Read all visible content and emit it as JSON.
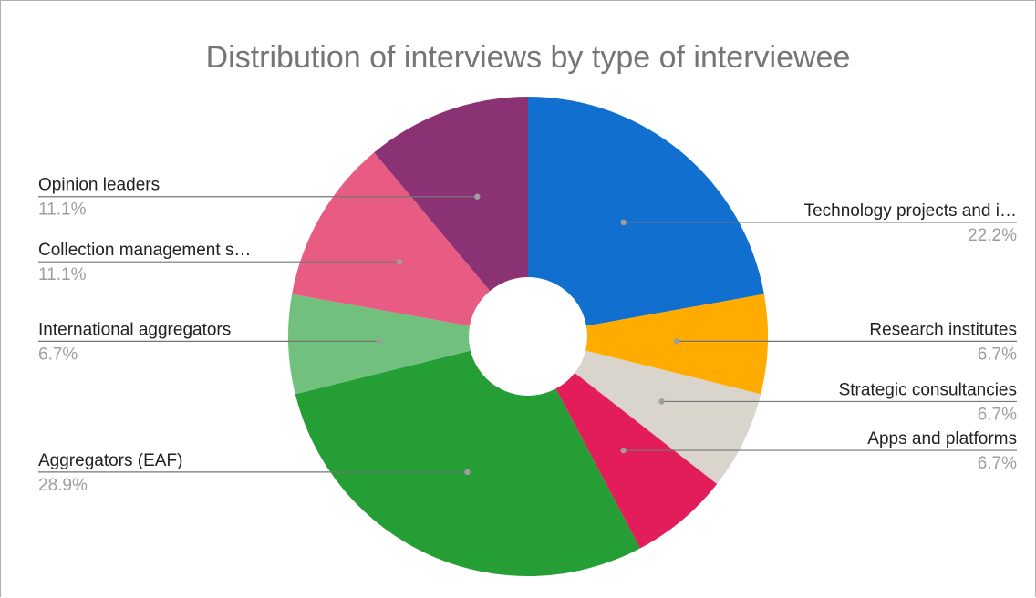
{
  "chart_data": {
    "type": "pie",
    "title": "Distribution of interviews by type of interviewee",
    "donut_hole": true,
    "slices": [
      {
        "label": "Technology projects and i…",
        "percent_label": "22.2%",
        "value": 22.2,
        "color": "#1170cf",
        "side": "right"
      },
      {
        "label": "Research institutes",
        "percent_label": "6.7%",
        "value": 6.7,
        "color": "#ffab00",
        "side": "right"
      },
      {
        "label": "Strategic consultancies",
        "percent_label": "6.7%",
        "value": 6.7,
        "color": "#d9d5cc",
        "side": "right"
      },
      {
        "label": "Apps and platforms",
        "percent_label": "6.7%",
        "value": 6.7,
        "color": "#e31d5a",
        "side": "right"
      },
      {
        "label": "Aggregators (EAF)",
        "percent_label": "28.9%",
        "value": 28.9,
        "color": "#249e35",
        "side": "left"
      },
      {
        "label": "International aggregators",
        "percent_label": "6.7%",
        "value": 6.7,
        "color": "#71c07d",
        "side": "left"
      },
      {
        "label": "Collection management s…",
        "percent_label": "11.1%",
        "value": 11.1,
        "color": "#e85c83",
        "side": "left"
      },
      {
        "label": "Opinion leaders",
        "percent_label": "11.1%",
        "value": 11.1,
        "color": "#8a3274",
        "side": "left"
      }
    ]
  }
}
